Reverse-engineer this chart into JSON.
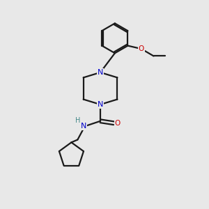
{
  "background_color": "#e8e8e8",
  "bond_color": "#1a1a1a",
  "nitrogen_color": "#0000cc",
  "oxygen_color": "#cc0000",
  "figsize": [
    3.0,
    3.0
  ],
  "dpi": 100,
  "xlim": [
    0,
    10
  ],
  "ylim": [
    0,
    10
  ]
}
